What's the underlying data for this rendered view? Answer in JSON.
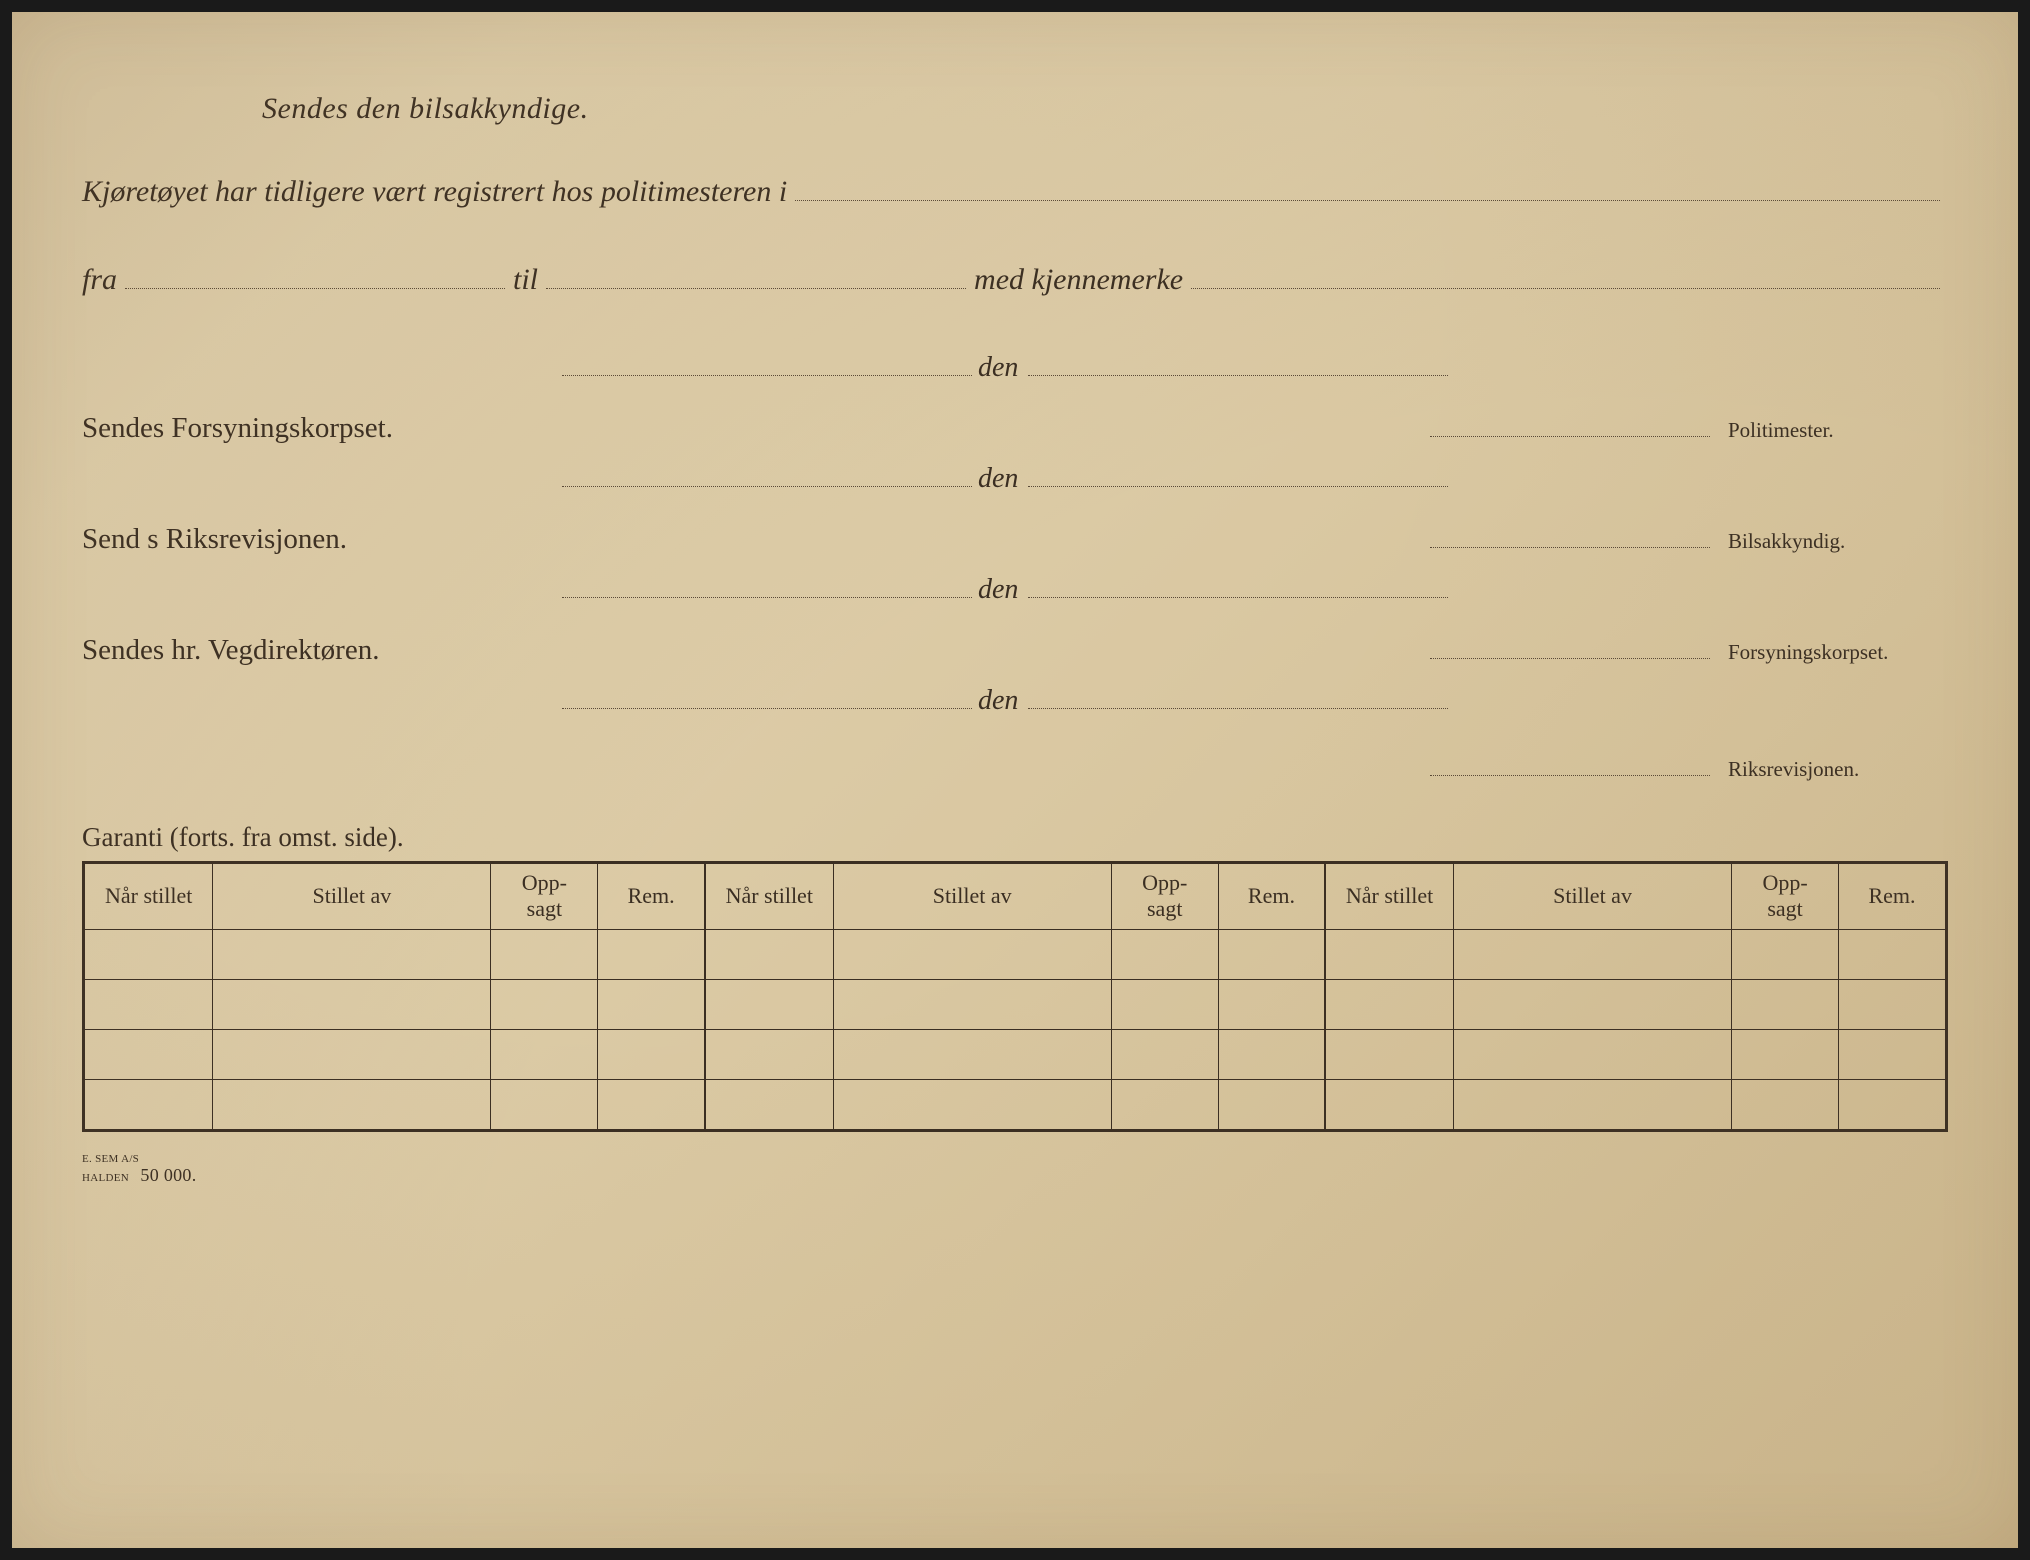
{
  "header": {
    "title": "Sendes den bilsakkyndige."
  },
  "intro": {
    "prefix": "Kjøretøyet har tidligere vært registrert hos politimesteren i",
    "fra": "fra",
    "til": "til",
    "med": "med kjennemerke"
  },
  "routing": [
    {
      "label": "Sendes Forsyningskorpset.",
      "signatory": "Politimester."
    },
    {
      "label": "Send s Riksrevisjonen.",
      "signatory": "Bilsakkyndig."
    },
    {
      "label": "Sendes hr. Vegdirektøren.",
      "signatory": "Forsyningskorpset."
    }
  ],
  "den_label": "den",
  "final_signatory": "Riksrevisjonen.",
  "garanti_label": "Garanti (forts. fra omst. side).",
  "table": {
    "columns": [
      {
        "label": "Når stillet",
        "width": "6%"
      },
      {
        "label": "Stillet av",
        "width": "13%"
      },
      {
        "label": "Opp-\nsagt",
        "width": "5%"
      },
      {
        "label": "Rem.",
        "width": "5%"
      },
      {
        "label": "Når stillet",
        "width": "6%"
      },
      {
        "label": "Stillet av",
        "width": "13%"
      },
      {
        "label": "Opp-\nsagt",
        "width": "5%"
      },
      {
        "label": "Rem.",
        "width": "5%"
      },
      {
        "label": "Når stillet",
        "width": "6%"
      },
      {
        "label": "Stillet av",
        "width": "13%"
      },
      {
        "label": "Opp-\nsagt",
        "width": "5%"
      },
      {
        "label": "Rem.",
        "width": "5%"
      }
    ],
    "row_count": 4,
    "group_breaks": [
      4,
      8
    ]
  },
  "footer": {
    "line1": "E. SEM A/S",
    "line2": "HALDEN",
    "qty": "50 000."
  },
  "colors": {
    "text": "#3a2e22",
    "dotted": "#5a4a38",
    "paper_light": "#e0d0ac",
    "paper_dark": "#cdb88e"
  }
}
